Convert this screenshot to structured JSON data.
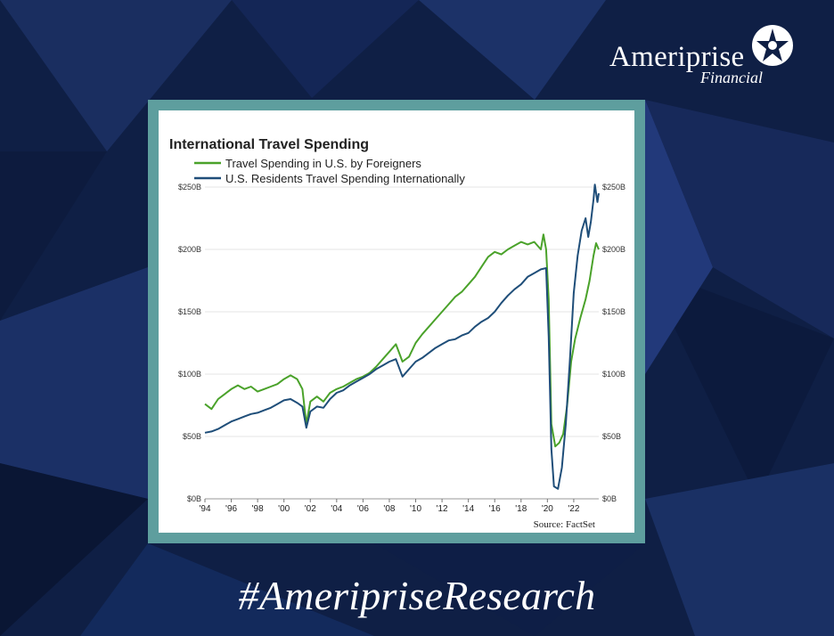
{
  "brand": {
    "name": "Ameriprise",
    "sub": "Financial",
    "logo_icon": "compass-star-icon"
  },
  "hashtag": "#AmeripriseResearch",
  "colors": {
    "background": "#0f1f45",
    "frame": "#5e9e9e",
    "foreigners": "#4aa22a",
    "residents": "#1f4e79"
  },
  "chart_data": {
    "type": "line",
    "title": "International Travel Spending",
    "source": "Source: FactSet",
    "legend_position": "top-left",
    "grid": true,
    "xlim": [
      1994,
      2023.9
    ],
    "ylim": [
      0,
      250
    ],
    "x_ticks": [
      1994,
      1996,
      1998,
      2000,
      2002,
      2004,
      2006,
      2008,
      2010,
      2012,
      2014,
      2016,
      2018,
      2020,
      2022
    ],
    "x_tick_labels": [
      "'94",
      "'96",
      "'98",
      "'00",
      "'02",
      "'04",
      "'06",
      "'08",
      "'10",
      "'12",
      "'14",
      "'16",
      "'18",
      "'20",
      "'22"
    ],
    "y_ticks": [
      0,
      50,
      100,
      150,
      200,
      250
    ],
    "y_tick_labels": [
      "$0B",
      "$50B",
      "$100B",
      "$150B",
      "$200B",
      "$250B"
    ],
    "series": [
      {
        "name": "Travel Spending in U.S. by Foreigners",
        "color": "#4aa22a",
        "points": [
          [
            1994.0,
            76
          ],
          [
            1994.5,
            72
          ],
          [
            1995.0,
            80
          ],
          [
            1995.5,
            84
          ],
          [
            1996.0,
            88
          ],
          [
            1996.5,
            91
          ],
          [
            1997.0,
            88
          ],
          [
            1997.5,
            90
          ],
          [
            1998.0,
            86
          ],
          [
            1998.5,
            88
          ],
          [
            1999.0,
            90
          ],
          [
            1999.5,
            92
          ],
          [
            2000.0,
            96
          ],
          [
            2000.5,
            99
          ],
          [
            2001.0,
            96
          ],
          [
            2001.4,
            88
          ],
          [
            2001.7,
            60
          ],
          [
            2002.0,
            78
          ],
          [
            2002.5,
            82
          ],
          [
            2003.0,
            78
          ],
          [
            2003.5,
            85
          ],
          [
            2004.0,
            88
          ],
          [
            2004.5,
            90
          ],
          [
            2005.0,
            93
          ],
          [
            2005.5,
            96
          ],
          [
            2006.0,
            98
          ],
          [
            2006.5,
            101
          ],
          [
            2007.0,
            106
          ],
          [
            2007.5,
            112
          ],
          [
            2008.0,
            118
          ],
          [
            2008.5,
            124
          ],
          [
            2009.0,
            110
          ],
          [
            2009.5,
            114
          ],
          [
            2010.0,
            125
          ],
          [
            2010.5,
            132
          ],
          [
            2011.0,
            138
          ],
          [
            2011.5,
            144
          ],
          [
            2012.0,
            150
          ],
          [
            2012.5,
            156
          ],
          [
            2013.0,
            162
          ],
          [
            2013.5,
            166
          ],
          [
            2014.0,
            172
          ],
          [
            2014.5,
            178
          ],
          [
            2015.0,
            186
          ],
          [
            2015.5,
            194
          ],
          [
            2016.0,
            198
          ],
          [
            2016.5,
            196
          ],
          [
            2017.0,
            200
          ],
          [
            2017.5,
            203
          ],
          [
            2018.0,
            206
          ],
          [
            2018.5,
            204
          ],
          [
            2019.0,
            206
          ],
          [
            2019.5,
            200
          ],
          [
            2019.7,
            212
          ],
          [
            2019.9,
            200
          ],
          [
            2020.1,
            160
          ],
          [
            2020.3,
            60
          ],
          [
            2020.6,
            42
          ],
          [
            2020.9,
            45
          ],
          [
            2021.2,
            52
          ],
          [
            2021.5,
            75
          ],
          [
            2021.8,
            110
          ],
          [
            2022.1,
            128
          ],
          [
            2022.5,
            145
          ],
          [
            2022.9,
            160
          ],
          [
            2023.2,
            175
          ],
          [
            2023.5,
            195
          ],
          [
            2023.7,
            205
          ],
          [
            2023.9,
            200
          ]
        ]
      },
      {
        "name": "U.S. Residents Travel Spending Internationally",
        "color": "#1f4e79",
        "points": [
          [
            1994.0,
            53
          ],
          [
            1994.5,
            54
          ],
          [
            1995.0,
            56
          ],
          [
            1995.5,
            59
          ],
          [
            1996.0,
            62
          ],
          [
            1996.5,
            64
          ],
          [
            1997.0,
            66
          ],
          [
            1997.5,
            68
          ],
          [
            1998.0,
            69
          ],
          [
            1998.5,
            71
          ],
          [
            1999.0,
            73
          ],
          [
            1999.5,
            76
          ],
          [
            2000.0,
            79
          ],
          [
            2000.5,
            80
          ],
          [
            2001.0,
            77
          ],
          [
            2001.4,
            74
          ],
          [
            2001.7,
            57
          ],
          [
            2002.0,
            70
          ],
          [
            2002.5,
            74
          ],
          [
            2003.0,
            73
          ],
          [
            2003.5,
            80
          ],
          [
            2004.0,
            85
          ],
          [
            2004.5,
            87
          ],
          [
            2005.0,
            91
          ],
          [
            2005.5,
            94
          ],
          [
            2006.0,
            97
          ],
          [
            2006.5,
            100
          ],
          [
            2007.0,
            104
          ],
          [
            2007.5,
            107
          ],
          [
            2008.0,
            110
          ],
          [
            2008.5,
            112
          ],
          [
            2009.0,
            98
          ],
          [
            2009.5,
            104
          ],
          [
            2010.0,
            110
          ],
          [
            2010.5,
            113
          ],
          [
            2011.0,
            117
          ],
          [
            2011.5,
            121
          ],
          [
            2012.0,
            124
          ],
          [
            2012.5,
            127
          ],
          [
            2013.0,
            128
          ],
          [
            2013.5,
            131
          ],
          [
            2014.0,
            133
          ],
          [
            2014.5,
            138
          ],
          [
            2015.0,
            142
          ],
          [
            2015.5,
            145
          ],
          [
            2016.0,
            150
          ],
          [
            2016.5,
            157
          ],
          [
            2017.0,
            163
          ],
          [
            2017.5,
            168
          ],
          [
            2018.0,
            172
          ],
          [
            2018.5,
            178
          ],
          [
            2019.0,
            181
          ],
          [
            2019.5,
            184
          ],
          [
            2019.9,
            185
          ],
          [
            2020.1,
            130
          ],
          [
            2020.3,
            40
          ],
          [
            2020.5,
            10
          ],
          [
            2020.8,
            8
          ],
          [
            2021.1,
            25
          ],
          [
            2021.4,
            60
          ],
          [
            2021.7,
            110
          ],
          [
            2022.0,
            165
          ],
          [
            2022.3,
            195
          ],
          [
            2022.6,
            215
          ],
          [
            2022.9,
            225
          ],
          [
            2023.1,
            210
          ],
          [
            2023.3,
            222
          ],
          [
            2023.5,
            240
          ],
          [
            2023.6,
            252
          ],
          [
            2023.8,
            238
          ],
          [
            2023.9,
            245
          ]
        ]
      }
    ]
  }
}
